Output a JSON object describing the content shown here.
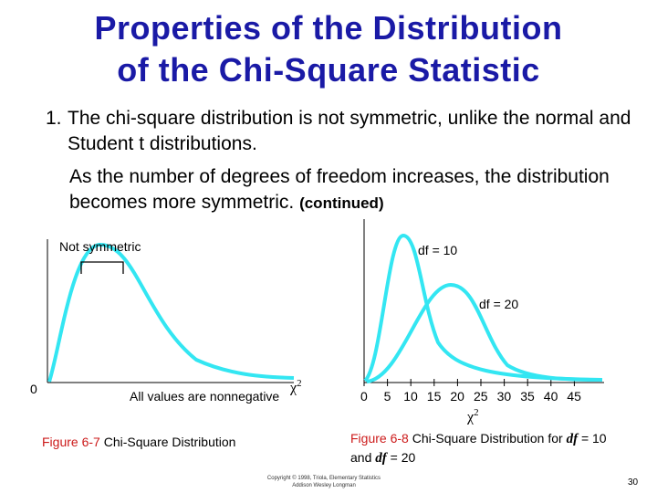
{
  "title": {
    "line1": "Properties of the Distribution",
    "line2": "of the Chi-Square Statistic"
  },
  "point1": {
    "number": "1.",
    "text": "The chi-square distribution is not symmetric, unlike the normal and Student t distributions."
  },
  "point2": {
    "text": "As the number of degrees of freedom increases, the distribution becomes more symmetric.",
    "note": "(continued)"
  },
  "figure_left": {
    "label_not_symmetric": "Not symmetric",
    "label_zero": "0",
    "label_nonnegative": "All values are nonnegative",
    "axis_symbol": "χ",
    "axis_exponent": "2",
    "caption_number": "Figure 6-7",
    "caption_text": "Chi-Square Distribution"
  },
  "figure_right": {
    "label_df10": "df = 10",
    "label_df20": "df = 20",
    "ticks": [
      "0",
      "5",
      "10",
      "15",
      "20",
      "25",
      "30",
      "35",
      "40",
      "45"
    ],
    "axis_symbol": "χ",
    "axis_exponent": "2",
    "caption_number": "Figure 6-8",
    "caption_text": "Chi-Square Distribution for",
    "caption_df": "df",
    "caption_eq10": " = 10",
    "caption_and": "and",
    "caption_eq20": " = 20"
  },
  "footer": {
    "copyright_line1": "Copyright © 1998, Triola, Elementary Statistics",
    "copyright_line2": "Addison Wesley Longman",
    "page": "30"
  },
  "colors": {
    "title": "#1a1aa6",
    "curve": "#33e6f2",
    "caption_number": "#cc1a1a"
  }
}
